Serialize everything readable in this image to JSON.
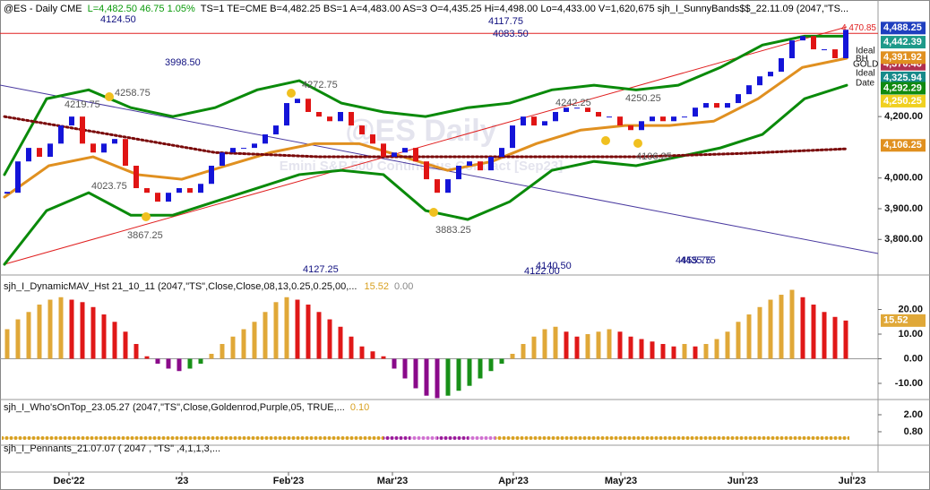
{
  "header": {
    "symbol": "@ES - Daily  CME",
    "quote": "L=4,482.50  46.75  1.05%",
    "fields": "TS=1  TE=CME  B=4,482.25  BS=1  A=4,483.00  AS=3  O=4,435.25  Hi=4,498.00  Lo=4,433.00  V=1,620,675  sjh_I_SunnyBands$$_22.11.09 (2047,\"TS..."
  },
  "watermark": {
    "title": "@ES Daily",
    "subtitle": "Emini S&P 500 Continuous Contract [Sep23]"
  },
  "annotations": [
    "4124.50",
    "3998.50",
    "4117.75",
    "4083.50",
    "4127.25",
    "4140.50",
    "4122.00",
    "4455.75",
    "4435.75"
  ],
  "swing_labels": [
    "4219.75",
    "4258.75",
    "4272.75",
    "4023.75",
    "3867.25",
    "3883.25",
    "4242.25",
    "4250.25",
    "4106.25"
  ],
  "side_labels": [
    "Ideal",
    "BH",
    "GOLD",
    "Ideal",
    "Date"
  ],
  "chart_data": [
    {
      "type": "candlestick",
      "ylim": [
        3690,
        4565
      ],
      "yticks": [
        {
          "value": 4200,
          "label": "4,200.00"
        },
        {
          "value": 4000,
          "label": "4,000.00"
        },
        {
          "value": 3900,
          "label": "3,900.00"
        },
        {
          "value": 3800,
          "label": "3,800.00"
        }
      ],
      "candle_colors": {
        "up": "#1414d8",
        "down": "#e01414"
      },
      "closes": [
        3952,
        4054,
        4098,
        4069,
        4112,
        4171,
        4200,
        4112,
        4083,
        4112,
        4127,
        4040,
        3967,
        3952,
        3923,
        3952,
        3967,
        3952,
        3981,
        4040,
        4083,
        4098,
        4098,
        4112,
        4142,
        4171,
        4244,
        4258,
        4215,
        4200,
        4185,
        4215,
        4171,
        4142,
        4112,
        4069,
        4083,
        4098,
        4054,
        3996,
        3952,
        3996,
        4040,
        4054,
        4025,
        4069,
        4098,
        4171,
        4200,
        4171,
        4185,
        4215,
        4229,
        4229,
        4215,
        4200,
        4200,
        4171,
        4156,
        4185,
        4200,
        4185,
        4200,
        4200,
        4229,
        4244,
        4229,
        4244,
        4273,
        4302,
        4331,
        4346,
        4390,
        4448,
        4462,
        4419,
        4419,
        4390,
        4482.5
      ],
      "series": [
        {
          "color": "#0a8a0a",
          "values": [
            4011,
            4258,
            4287,
            4229,
            4200,
            4229,
            4287,
            4317,
            4244,
            4215,
            4200,
            4229,
            4244,
            4287,
            4302,
            4287,
            4302,
            4360,
            4433,
            4462,
            4462
          ]
        },
        {
          "color": "#0a8a0a",
          "values": [
            3719,
            3894,
            3952,
            3879,
            3879,
            3923,
            3967,
            4011,
            4025,
            4011,
            3894,
            3865,
            3923,
            4025,
            4054,
            4040,
            4069,
            4098,
            4142,
            4258,
            4302
          ]
        },
        {
          "color": "#e09020",
          "values": [
            3938,
            4040,
            4069,
            4011,
            3996,
            4040,
            4083,
            4112,
            4112,
            4069,
            4025,
            4054,
            4112,
            4156,
            4171,
            4171,
            4185,
            4258,
            4360,
            4390
          ]
        },
        {
          "color": "#7a0a0a",
          "dotted": true,
          "values": [
            4200,
            4142,
            4083,
            4069,
            4069,
            4069,
            4069,
            4080,
            4095
          ]
        }
      ],
      "hline": {
        "value": 4470.85,
        "label": "4,470.85",
        "color": "#e02020"
      },
      "price_markers": [
        {
          "value": 4488.25,
          "label": "4,488.25",
          "color": "#1f3fbf"
        },
        {
          "value": 4442.39,
          "label": "4,442.39",
          "color": "#1e9a8a"
        },
        {
          "value": 4370.46,
          "label": "4,370.46",
          "color": "#b03050"
        },
        {
          "value": 4391.92,
          "label": "4,391.92",
          "color": "#e09020"
        },
        {
          "value": 4325.94,
          "label": "4,325.94",
          "color": "#178a8a"
        },
        {
          "value": 4292.29,
          "label": "4,292.29",
          "color": "#108a10"
        },
        {
          "value": 4250.25,
          "label": "4,250.25",
          "color": "#f0d020"
        },
        {
          "value": 4106.25,
          "label": "4,106.25",
          "color": "#e09020"
        }
      ]
    },
    {
      "type": "bar",
      "title": "sjh_I_DynamicMAV_Hst 21_10_11 (2047,\"TS\",Close,Close,08,13,0.25,0.25,00,...",
      "last": "15.52",
      "zero": "0.00",
      "ylim": [
        -16.2,
        32.2
      ],
      "yticks": [
        {
          "value": 20,
          "label": "20.00"
        },
        {
          "value": 10,
          "label": "10.00"
        },
        {
          "value": 0,
          "label": "0.00"
        },
        {
          "value": -10,
          "label": "-10.00"
        }
      ],
      "bar_colors": {
        "rise": "#e0a838",
        "fall": "#e01818",
        "neg_fall": "#8a0a8a",
        "neg_rise": "#189018"
      },
      "values": [
        12,
        16,
        19,
        22,
        24,
        25,
        24,
        23,
        21,
        18,
        15,
        11,
        6,
        1,
        -2,
        -4,
        -5,
        -4,
        -2,
        2,
        6,
        9,
        12,
        15,
        19,
        23,
        25,
        24,
        22,
        19,
        16,
        13,
        9,
        5,
        3,
        1,
        -4,
        -8,
        -12,
        -15,
        -16,
        -15,
        -13,
        -11,
        -8,
        -5,
        -2,
        2,
        6,
        9,
        12,
        13,
        11,
        9,
        10,
        11,
        12,
        11,
        9,
        8,
        7,
        6,
        5,
        6,
        5,
        6,
        8,
        11,
        15,
        18,
        21,
        24,
        26,
        28,
        25,
        22,
        19,
        17,
        15.52
      ],
      "marker": {
        "value": 15.52,
        "label": "15.52",
        "color": "#e0a838"
      }
    },
    {
      "type": "dots",
      "title": "sjh_I_Who'sOnTop_23.05.27 (2047,\"TS\",Close,Goldenrod,Purple,05,  TRUE,...",
      "last": "0.10",
      "ylim": [
        -0.15,
        3.01
      ],
      "yticks": [
        {
          "value": 2,
          "label": "2.00"
        },
        {
          "value": 0.8,
          "label": "0.80"
        }
      ]
    },
    {
      "type": "empty",
      "title": "sjh_I_Pennants_21.07.07 ( 2047 , \"TS\" ,4,1,1,3,..."
    }
  ],
  "x_axis": [
    "Dec'22",
    "'23",
    "Feb'23",
    "Mar'23",
    "Apr'23",
    "May'23",
    "Jun'23",
    "Jul'23"
  ]
}
